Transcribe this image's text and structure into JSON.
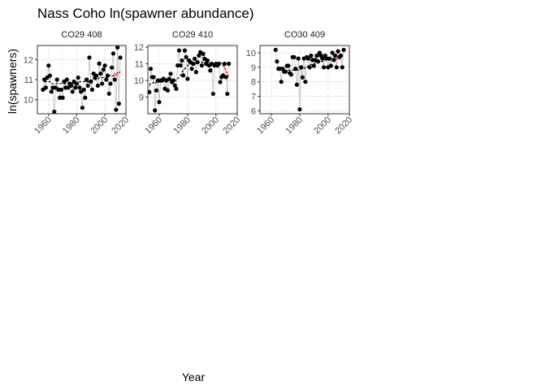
{
  "chart_data": {
    "type": "line",
    "title": "Nass Coho ln(spawner abundance)",
    "xlabel": "Year",
    "ylabel": "ln(spawners)",
    "grid": true,
    "legend": "none",
    "colors": {
      "points": "#000000",
      "observed_line": "#bdbdbd",
      "fit_line": "#000000",
      "forecast_line": "#ff0000",
      "panel_background": "#ffffff",
      "strip_background": "#ffffff",
      "grid": "#ebebeb",
      "panel_border": "#333333",
      "axis_text": "#4d4d4d"
    },
    "facets": [
      {
        "label": "CO29 408",
        "xlim": [
          1952,
          2015
        ],
        "ylim": [
          9.3,
          12.7
        ],
        "x_ticks": [
          1960,
          1980,
          2000,
          2020
        ],
        "y_ticks": [
          10,
          11,
          12
        ],
        "series": [
          {
            "role": "observed",
            "x": [
              1956,
              1957,
              1958,
              1959,
              1960,
              1961,
              1962,
              1963,
              1964,
              1965,
              1966,
              1967,
              1968,
              1969,
              1970,
              1971,
              1972,
              1973,
              1974,
              1975,
              1976,
              1977,
              1978,
              1979,
              1980,
              1981,
              1982,
              1983,
              1984,
              1985,
              1986,
              1987,
              1988,
              1989,
              1990,
              1991,
              1992,
              1993,
              1994,
              1995,
              1996,
              1997,
              1998,
              1999,
              2000,
              2001,
              2002,
              2003,
              2004,
              2005,
              2006,
              2007,
              2008,
              2009,
              2010,
              2011
            ],
            "y": [
              10.5,
              11.0,
              10.6,
              11.1,
              11.7,
              11.2,
              10.4,
              10.6,
              9.4,
              10.6,
              11.0,
              10.5,
              10.1,
              10.5,
              10.1,
              10.9,
              10.6,
              11.0,
              10.6,
              10.8,
              10.7,
              10.4,
              10.9,
              10.6,
              10.8,
              11.1,
              10.6,
              10.4,
              9.6,
              10.5,
              10.1,
              11.0,
              10.7,
              12.1,
              10.9,
              10.5,
              11.3,
              11.1,
              11.2,
              10.7,
              11.8,
              11.3,
              10.8,
              11.5,
              11.7,
              11.0,
              11.2,
              10.3,
              10.8,
              11.6,
              12.3,
              11.0,
              9.5,
              12.6,
              9.8,
              12.1
            ]
          },
          {
            "role": "fit",
            "x": [
              1957,
              1958,
              1959,
              1960,
              1961,
              1962,
              1963,
              1964,
              1965,
              1966,
              1967,
              1968,
              1969,
              1970,
              1971,
              1972,
              1973,
              1974,
              1975,
              1976,
              1977,
              1978,
              1979,
              1980,
              1981,
              1982,
              1983,
              1984,
              1985,
              1986,
              1987,
              1988,
              1989,
              1990,
              1991,
              1992,
              1993,
              1994,
              1995,
              1996,
              1997,
              1998,
              1999,
              2000,
              2001,
              2002,
              2003,
              2004,
              2005,
              2006,
              2007,
              2008,
              2009
            ],
            "y": [
              10.9,
              10.9,
              10.9,
              10.9,
              10.9,
              10.8,
              10.8,
              10.8,
              10.8,
              10.8,
              10.8,
              10.8,
              10.8,
              10.8,
              10.8,
              10.8,
              10.8,
              10.8,
              10.8,
              10.8,
              10.8,
              10.8,
              10.8,
              10.8,
              10.8,
              10.9,
              10.9,
              10.9,
              10.9,
              10.9,
              10.9,
              10.9,
              10.9,
              10.9,
              11.0,
              11.0,
              11.0,
              11.0,
              11.0,
              11.1,
              11.1,
              11.1,
              11.1,
              11.1,
              11.1,
              11.1,
              11.2,
              11.2,
              11.2,
              11.2,
              11.2,
              11.2,
              11.2
            ]
          },
          {
            "role": "forecast",
            "x": [
              2005,
              2006,
              2007,
              2008,
              2009,
              2010,
              2011
            ],
            "y": [
              11.15,
              11.2,
              11.3,
              11.25,
              11.35,
              11.3,
              11.4
            ]
          }
        ]
      },
      {
        "label": "CO29 410",
        "xlim": [
          1952,
          2015
        ],
        "ylim": [
          8.0,
          12.1
        ],
        "x_ticks": [
          1960,
          1980,
          2000,
          2020
        ],
        "y_ticks": [
          9,
          10,
          11,
          12
        ],
        "series": [
          {
            "role": "observed",
            "x": [
              1953,
              1954,
              1955,
              1956,
              1957,
              1958,
              1959,
              1960,
              1961,
              1962,
              1963,
              1964,
              1965,
              1966,
              1967,
              1968,
              1969,
              1970,
              1971,
              1972,
              1973,
              1974,
              1975,
              1976,
              1977,
              1978,
              1979,
              1980,
              1981,
              1982,
              1983,
              1984,
              1985,
              1986,
              1987,
              1988,
              1989,
              1990,
              1991,
              1992,
              1993,
              1994,
              1995,
              1996,
              1997,
              1998,
              1999,
              2000,
              2001,
              2002,
              2003,
              2004,
              2005,
              2006,
              2007,
              2008,
              2009
            ],
            "y": [
              9.3,
              10.7,
              10.2,
              10.2,
              8.2,
              9.4,
              10.0,
              8.7,
              10.0,
              10.0,
              10.1,
              9.5,
              10.0,
              9.4,
              10.1,
              10.4,
              9.9,
              10.0,
              9.7,
              9.5,
              10.9,
              11.8,
              10.9,
              11.2,
              10.3,
              11.8,
              11.4,
              10.1,
              11.2,
              11.1,
              10.7,
              11.0,
              11.3,
              10.5,
              11.1,
              11.5,
              11.7,
              10.9,
              11.6,
              11.3,
              11.0,
              11.2,
              10.9,
              10.6,
              11.0,
              9.2,
              10.9,
              11.0,
              10.9,
              11.0,
              9.9,
              10.2,
              10.3,
              11.0,
              10.2,
              9.2,
              11.0
            ]
          },
          {
            "role": "fit",
            "x": [
              1953,
              1954,
              1955,
              1956,
              1957,
              1958,
              1959,
              1960,
              1961,
              1962,
              1963,
              1964,
              1965,
              1966,
              1967,
              1968,
              1969,
              1970,
              1971,
              1972,
              1973,
              1974,
              1975,
              1976,
              1977,
              1978,
              1979,
              1980,
              1981,
              1982,
              1983,
              1984,
              1985,
              1986,
              1987,
              1988,
              1989,
              1990,
              1991,
              1992,
              1993,
              1994,
              1995,
              1996,
              1997,
              1998,
              1999,
              2000,
              2001,
              2002,
              2003
            ],
            "y": [
              9.7,
              9.8,
              9.8,
              9.9,
              9.8,
              9.9,
              9.9,
              9.9,
              9.9,
              10.0,
              10.0,
              10.0,
              10.0,
              10.0,
              10.0,
              10.0,
              10.0,
              10.0,
              10.0,
              10.0,
              10.1,
              10.2,
              10.3,
              10.5,
              10.6,
              10.7,
              10.8,
              10.9,
              11.0,
              11.0,
              11.0,
              11.0,
              11.0,
              11.0,
              11.0,
              11.1,
              11.1,
              11.1,
              11.1,
              11.1,
              11.1,
              11.1,
              11.1,
              11.0,
              11.0,
              11.0,
              11.0,
              11.0,
              11.0,
              11.0,
              10.9
            ]
          },
          {
            "role": "forecast",
            "x": [
              2003,
              2004,
              2005,
              2006,
              2007,
              2008,
              2009
            ],
            "y": [
              11.1,
              11.0,
              10.9,
              10.8,
              10.6,
              10.4,
              10.2
            ]
          }
        ]
      },
      {
        "label": "CO30 409",
        "xlim": [
          1952,
          2015
        ],
        "ylim": [
          5.8,
          10.5
        ],
        "x_ticks": [
          1960,
          1980,
          2000,
          2020
        ],
        "y_ticks": [
          6,
          7,
          8,
          9,
          10
        ],
        "series": [
          {
            "role": "observed",
            "x": [
              1963,
              1964,
              1965,
              1966,
              1967,
              1968,
              1969,
              1970,
              1971,
              1972,
              1973,
              1974,
              1975,
              1976,
              1977,
              1978,
              1979,
              1980,
              1981,
              1982,
              1983,
              1984,
              1985,
              1986,
              1987,
              1988,
              1989,
              1990,
              1991,
              1992,
              1993,
              1994,
              1995,
              1996,
              1997,
              1998,
              1999,
              2000,
              2001,
              2002,
              2003,
              2004,
              2005,
              2006,
              2007,
              2008,
              2009,
              2010,
              2011
            ],
            "y": [
              10.2,
              9.4,
              8.9,
              8.9,
              8.0,
              8.9,
              8.7,
              8.7,
              9.1,
              9.1,
              8.6,
              8.5,
              9.7,
              9.7,
              8.9,
              7.8,
              9.6,
              6.1,
              9.0,
              8.3,
              9.6,
              8.0,
              9.7,
              9.6,
              9.0,
              9.8,
              9.5,
              9.1,
              9.5,
              9.8,
              9.4,
              10.0,
              9.8,
              9.6,
              9.0,
              9.8,
              9.6,
              9.0,
              9.6,
              9.1,
              10.0,
              9.5,
              9.8,
              9.0,
              10.1,
              9.7,
              9.8,
              9.0,
              10.2
            ]
          },
          {
            "role": "fit",
            "x": [
              1964,
              1965,
              1966,
              1967,
              1968,
              1969,
              1970,
              1971,
              1972,
              1973,
              1974,
              1975,
              1976,
              1977,
              1978,
              1979,
              1980,
              1981,
              1982,
              1983,
              1984,
              1985,
              1986,
              1987,
              1988,
              1989,
              1990,
              1991,
              1992,
              1993,
              1994,
              1995,
              1996,
              1997,
              1998,
              1999,
              2000,
              2001,
              2002,
              2003,
              2004,
              2005
            ],
            "y": [
              8.8,
              8.8,
              8.9,
              8.9,
              8.8,
              8.8,
              8.8,
              8.8,
              8.8,
              8.8,
              8.8,
              8.8,
              8.8,
              8.8,
              8.8,
              8.8,
              8.8,
              8.9,
              8.9,
              8.9,
              9.0,
              9.0,
              9.1,
              9.1,
              9.2,
              9.2,
              9.2,
              9.3,
              9.3,
              9.4,
              9.4,
              9.4,
              9.4,
              9.4,
              9.5,
              9.5,
              9.5,
              9.5,
              9.5,
              9.5,
              9.5,
              9.5
            ]
          },
          {
            "role": "forecast",
            "x": [
              2003,
              2004,
              2005,
              2006,
              2007,
              2008,
              2009
            ],
            "y": [
              9.4,
              9.5,
              9.5,
              9.6,
              9.7,
              9.8,
              9.9
            ]
          }
        ]
      }
    ]
  }
}
